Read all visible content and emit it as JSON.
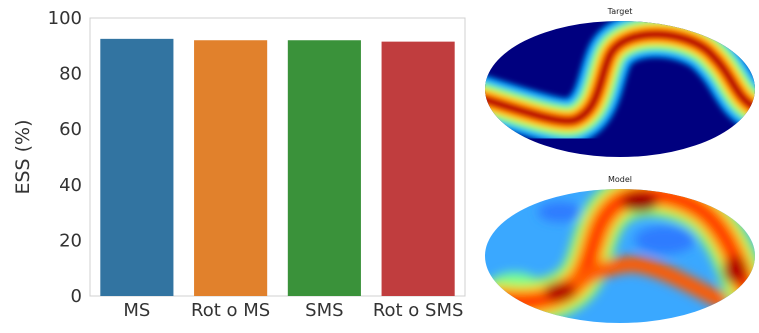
{
  "chart_data": [
    {
      "type": "bar",
      "title": "",
      "xlabel": "",
      "ylabel": "ESS (%)",
      "ylim": [
        0,
        100
      ],
      "yticks": [
        0,
        20,
        40,
        60,
        80,
        100
      ],
      "categories": [
        "MS",
        "Rot o MS",
        "SMS",
        "Rot o SMS"
      ],
      "values": [
        92.5,
        92.0,
        92.0,
        91.5
      ],
      "colors": [
        "#3274a1",
        "#e1812c",
        "#3a923a",
        "#c03d3e"
      ],
      "grid": false,
      "legend": "none"
    },
    {
      "type": "heatmap",
      "projection": "mollweide",
      "title": "Target",
      "colormap": "jet"
    },
    {
      "type": "heatmap",
      "projection": "mollweide",
      "title": "Model",
      "colormap": "jet"
    }
  ]
}
